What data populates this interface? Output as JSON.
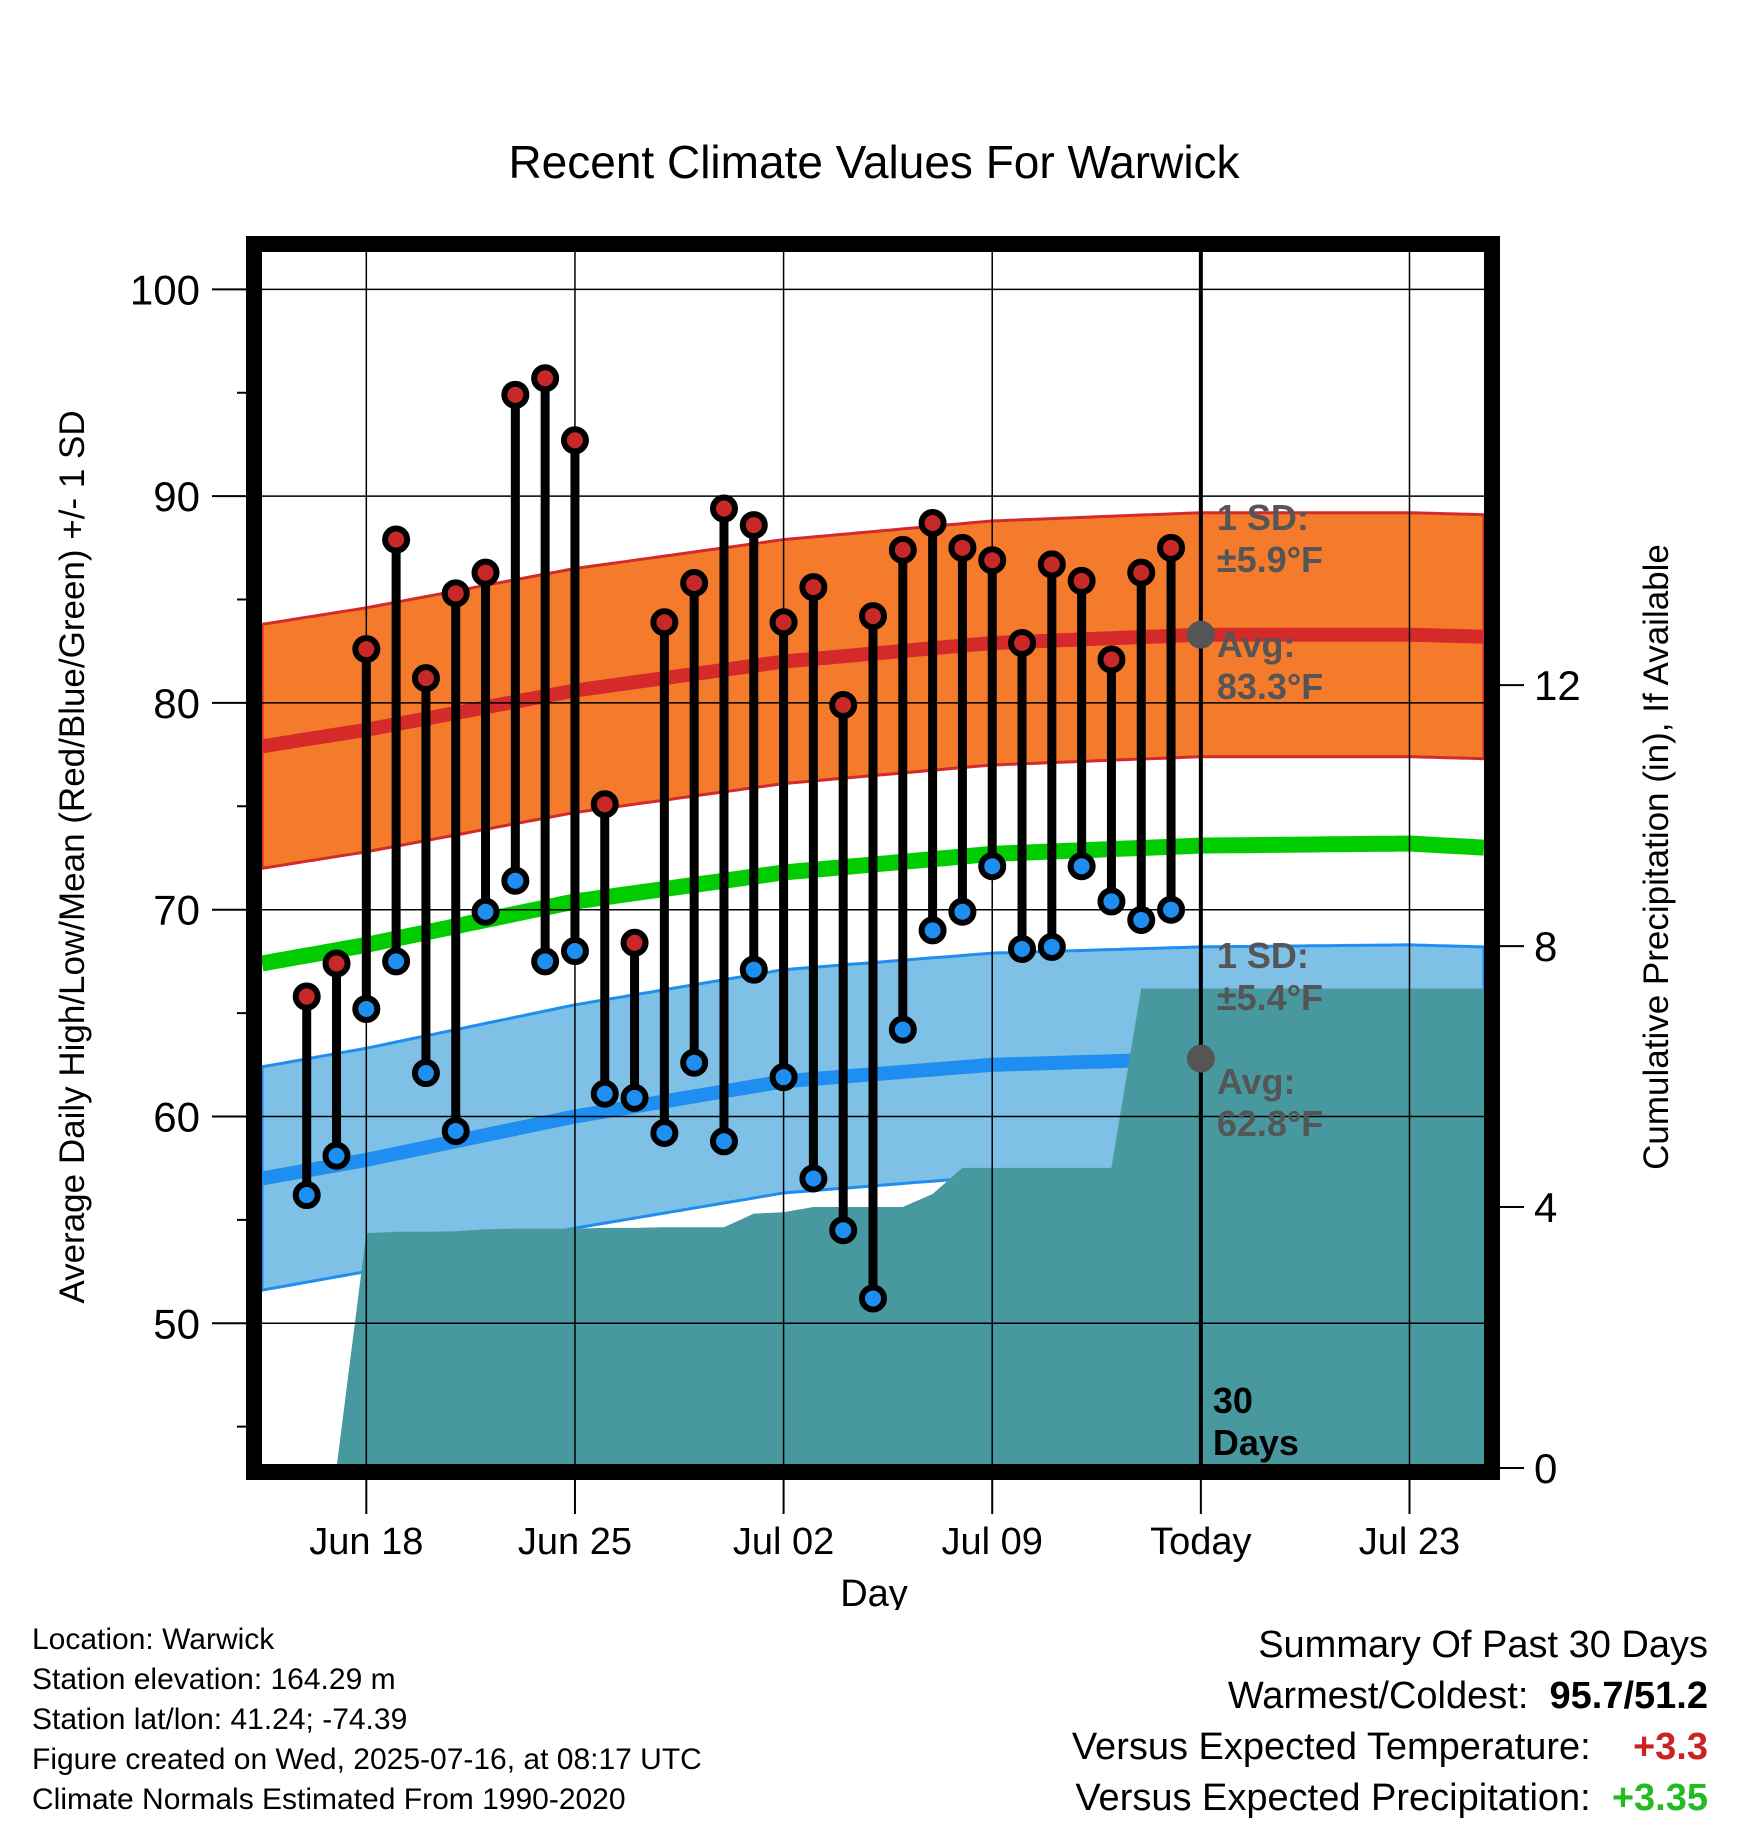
{
  "chart_data": {
    "type": "line",
    "title": "Recent Climate Values For Warwick",
    "xlabel": "Day",
    "ylabel": "Average Daily High/Low/Mean (Red/Blue/Green) +/- 1 SD",
    "y2label": "Cumulative Precipitation (in), If Available",
    "ylim": [
      43,
      102
    ],
    "y_ticks": [
      50,
      60,
      70,
      80,
      90,
      100
    ],
    "y2lim": [
      0,
      18.7
    ],
    "y2_ticks": [
      0,
      4,
      8,
      12
    ],
    "x_days_from_jun18": [
      -3.5,
      37.5
    ],
    "x_tick_days": [
      0,
      7,
      14,
      21,
      28,
      35
    ],
    "x_tick_labels": [
      "Jun 18",
      "Jun 25",
      "Jul 02",
      "Jul 09",
      "Today",
      "Jul 23"
    ],
    "today_day": 28,
    "grid": true,
    "today_label": [
      "30",
      "Days"
    ],
    "observed": {
      "days": [
        -2,
        -1,
        0,
        1,
        2,
        3,
        4,
        5,
        6,
        7,
        8,
        9,
        10,
        11,
        12,
        13,
        14,
        15,
        16,
        17,
        18,
        19,
        20,
        21,
        22,
        23,
        24,
        25,
        26,
        27
      ],
      "high": [
        65.8,
        67.4,
        82.6,
        87.9,
        81.2,
        85.3,
        86.3,
        94.9,
        95.7,
        92.7,
        75.1,
        68.4,
        83.9,
        85.8,
        89.4,
        88.6,
        83.9,
        85.6,
        79.9,
        84.2,
        87.4,
        88.7,
        87.5,
        86.9,
        82.9,
        86.7,
        85.9,
        82.1,
        86.3,
        87.5
      ],
      "low": [
        56.2,
        58.1,
        65.2,
        67.5,
        62.1,
        59.3,
        69.9,
        71.4,
        67.5,
        68.0,
        61.1,
        60.9,
        59.2,
        62.6,
        58.8,
        67.1,
        61.9,
        57.0,
        54.5,
        51.2,
        64.2,
        69.0,
        69.9,
        72.1,
        68.1,
        68.2,
        72.1,
        70.4,
        69.5,
        70.0
      ]
    },
    "normals": {
      "days": [
        -3.5,
        0,
        7,
        14,
        21,
        28,
        35,
        37.5
      ],
      "avg_high": [
        77.9,
        78.7,
        80.6,
        82.0,
        82.9,
        83.3,
        83.3,
        83.2
      ],
      "avg_low": [
        57.0,
        57.9,
        60.0,
        61.7,
        62.5,
        62.8,
        62.9,
        62.8
      ],
      "avg_mean": [
        67.4,
        68.3,
        70.4,
        71.8,
        72.7,
        73.1,
        73.2,
        73.0
      ],
      "high_sd": 5.9,
      "low_sd": 5.4
    },
    "precip": {
      "days": [
        -2,
        -1,
        0,
        1,
        2,
        3,
        4,
        5,
        6,
        7,
        8,
        9,
        10,
        11,
        12,
        13,
        14,
        15,
        16,
        17,
        18,
        19,
        20,
        21,
        22,
        23,
        24,
        25,
        26,
        27,
        28,
        37.5
      ],
      "values": [
        0,
        0,
        3.6,
        3.62,
        3.62,
        3.63,
        3.66,
        3.67,
        3.67,
        3.67,
        3.68,
        3.68,
        3.69,
        3.69,
        3.69,
        3.9,
        3.92,
        4.0,
        4.0,
        4.0,
        4.0,
        4.2,
        4.6,
        4.6,
        4.6,
        4.6,
        4.6,
        4.6,
        7.35,
        7.35,
        7.35,
        7.35
      ]
    },
    "annotations": {
      "high_sd_label": [
        "1 SD:",
        "±5.9°F"
      ],
      "high_avg_label": [
        "Avg:",
        "83.3°F"
      ],
      "low_sd_label": [
        "1 SD:",
        "±5.4°F"
      ],
      "low_avg_label": [
        "Avg:",
        "62.8°F"
      ]
    },
    "colors": {
      "high_band": "#f47b2c",
      "high_line": "#d42a2a",
      "low_band": "#7fc1e6",
      "low_line": "#1e8ef0",
      "mean_line": "#00cc00",
      "precip": "#48999f",
      "high_dot": "#c72828",
      "low_dot": "#1e8ef0",
      "annotation": "#555555"
    }
  },
  "info": {
    "location": "Location: Warwick",
    "elevation": "Station elevation: 164.29 m",
    "latlon": "Station lat/lon: 41.24; -74.39",
    "created": "Figure created on Wed, 2025-07-16, at 08:17 UTC",
    "normals": "Climate Normals Estimated From 1990-2020"
  },
  "summary": {
    "heading": "Summary Of Past 30 Days",
    "warm_cold_label": "Warmest/Coldest:",
    "warm_cold_value": "95.7/51.2",
    "temp_label": "Versus Expected Temperature:",
    "temp_value": "+3.3",
    "precip_label": "Versus Expected Precipitation:",
    "precip_value": "+3.35"
  }
}
